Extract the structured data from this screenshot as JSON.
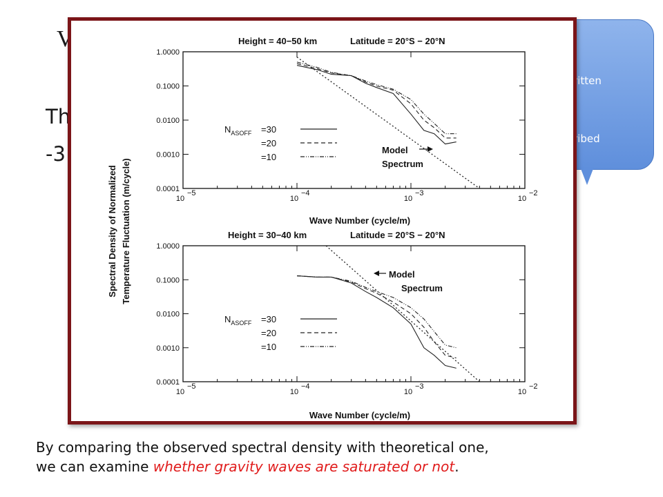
{
  "slide": {
    "title_fragment": "V",
    "body_line1_fragment": "Th",
    "body_line2_fragment": "-3",
    "callout_line1": "ritten",
    "callout_line2": "ribed",
    "caption_part1": "By comparing the observed spectral density with theoretical one,",
    "caption_part2": "we can examine ",
    "caption_emphasis": "whether gravity waves are saturated or not",
    "caption_end": "."
  },
  "colors": {
    "panel_border": "#7b1518",
    "callout": "#6b97de",
    "emphasis": "#e01b1b"
  },
  "chart_data": [
    {
      "type": "line",
      "title_height": "Height = 40−50 km",
      "title_latitude": "Latitude = 20°S − 20°N",
      "xlabel": "Wave Number (cycle/m)",
      "ylabel_line1": "Spectral Density of Normalized",
      "ylabel_line2": "Temperature Fluctuation (m/cycle)",
      "xscale": "log",
      "yscale": "log",
      "xlim": [
        1e-05,
        0.01
      ],
      "ylim": [
        0.0001,
        1.0
      ],
      "xticks": [
        "10",
        "10",
        "10",
        "10"
      ],
      "xtick_exponents": [
        "−5",
        "−4",
        "−3",
        "−2"
      ],
      "yticks": [
        "1.0000",
        "0.1000",
        "0.0100",
        "0.0010",
        "0.0001"
      ],
      "legend_prefix": "N",
      "legend_subscript": "ASOFF",
      "legend_labels": [
        "=30",
        "=20",
        "=10"
      ],
      "annotation_line1": "Model",
      "annotation_line2": "Spectrum",
      "series": [
        {
          "name": "=30",
          "x": [
            0.0001,
            0.00015,
            0.0002,
            0.0003,
            0.0004,
            0.0005,
            0.0007,
            0.001,
            0.0013,
            0.0016,
            0.002,
            0.0025
          ],
          "y": [
            0.4,
            0.3,
            0.22,
            0.2,
            0.12,
            0.09,
            0.06,
            0.015,
            0.005,
            0.004,
            0.002,
            0.0023
          ]
        },
        {
          "name": "=20",
          "x": [
            0.0001,
            0.00015,
            0.0002,
            0.0003,
            0.0004,
            0.0005,
            0.0007,
            0.001,
            0.0013,
            0.0016,
            0.002,
            0.0025
          ],
          "y": [
            0.45,
            0.32,
            0.24,
            0.2,
            0.13,
            0.1,
            0.075,
            0.03,
            0.01,
            0.006,
            0.003,
            0.003
          ]
        },
        {
          "name": "=10",
          "x": [
            0.0001,
            0.00015,
            0.0002,
            0.0003,
            0.0004,
            0.0005,
            0.0007,
            0.001,
            0.0013,
            0.0016,
            0.002,
            0.0025
          ],
          "y": [
            0.5,
            0.35,
            0.25,
            0.2,
            0.14,
            0.11,
            0.08,
            0.04,
            0.015,
            0.008,
            0.004,
            0.004
          ]
        },
        {
          "name": "Model Spectrum",
          "x": [
            0.0001,
            0.004
          ],
          "y": [
            0.7,
            0.0001
          ]
        }
      ]
    },
    {
      "type": "line",
      "title_height": "Height = 30−40 km",
      "title_latitude": "Latitude = 20°S − 20°N",
      "xlabel": "Wave Number (cycle/m)",
      "xscale": "log",
      "yscale": "log",
      "xlim": [
        1e-05,
        0.01
      ],
      "ylim": [
        0.0001,
        1.0
      ],
      "xticks": [
        "10",
        "10",
        "10",
        "10"
      ],
      "xtick_exponents": [
        "−5",
        "−4",
        "−3",
        "−2"
      ],
      "yticks": [
        "1.0000",
        "0.1000",
        "0.0100",
        "0.0010",
        "0.0001"
      ],
      "legend_prefix": "N",
      "legend_subscript": "ASOFF",
      "legend_labels": [
        "=30",
        "=20",
        "=10"
      ],
      "annotation_line1": "Model",
      "annotation_line2": "Spectrum",
      "series": [
        {
          "name": "=30",
          "x": [
            0.0001,
            0.00015,
            0.0002,
            0.0003,
            0.0004,
            0.0005,
            0.0007,
            0.001,
            0.0013,
            0.0016,
            0.002,
            0.0025
          ],
          "y": [
            0.13,
            0.12,
            0.12,
            0.08,
            0.045,
            0.03,
            0.015,
            0.005,
            0.001,
            0.0006,
            0.0003,
            0.00025
          ]
        },
        {
          "name": "=20",
          "x": [
            0.0001,
            0.00015,
            0.0002,
            0.0003,
            0.0004,
            0.0005,
            0.0007,
            0.001,
            0.0013,
            0.0016,
            0.002,
            0.0025
          ],
          "y": [
            0.13,
            0.12,
            0.12,
            0.085,
            0.055,
            0.04,
            0.022,
            0.01,
            0.004,
            0.0015,
            0.0006,
            0.0005
          ]
        },
        {
          "name": "=10",
          "x": [
            0.0001,
            0.00015,
            0.0002,
            0.0003,
            0.0004,
            0.0005,
            0.0007,
            0.001,
            0.0013,
            0.0016,
            0.002,
            0.0025
          ],
          "y": [
            0.13,
            0.12,
            0.12,
            0.09,
            0.06,
            0.045,
            0.03,
            0.015,
            0.007,
            0.003,
            0.0012,
            0.001
          ]
        },
        {
          "name": "Model Spectrum",
          "x": [
            0.00018,
            0.004
          ],
          "y": [
            1.0,
            0.0001
          ]
        }
      ]
    }
  ]
}
